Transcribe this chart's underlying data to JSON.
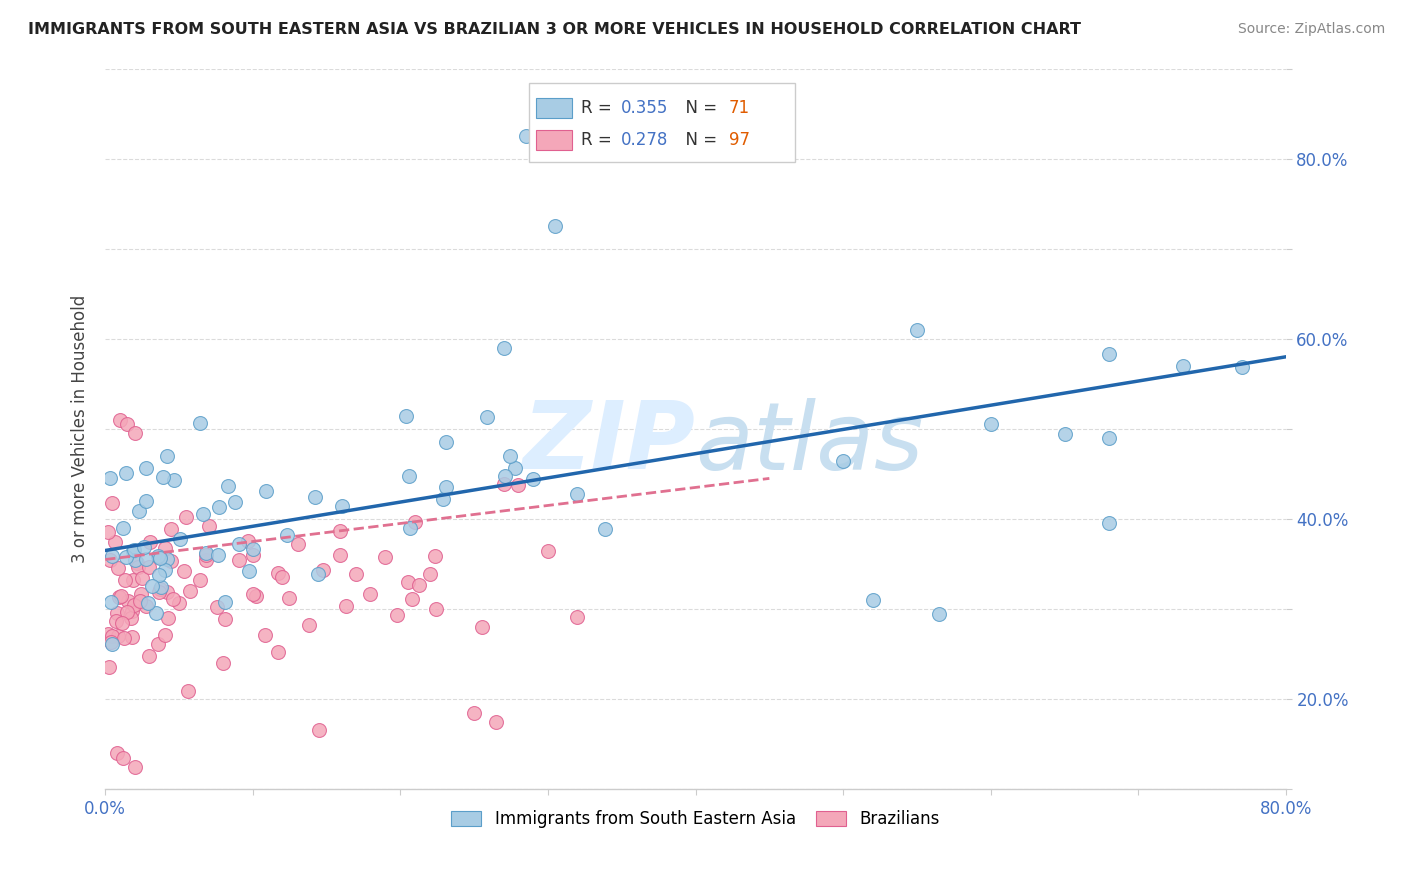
{
  "title": "IMMIGRANTS FROM SOUTH EASTERN ASIA VS BRAZILIAN 3 OR MORE VEHICLES IN HOUSEHOLD CORRELATION CHART",
  "source": "Source: ZipAtlas.com",
  "ylabel": "3 or more Vehicles in Household",
  "xlim": [
    0.0,
    0.8
  ],
  "ylim": [
    0.0,
    0.8
  ],
  "xticks": [
    0.0,
    0.1,
    0.2,
    0.3,
    0.4,
    0.5,
    0.6,
    0.7,
    0.8
  ],
  "yticks": [
    0.0,
    0.1,
    0.2,
    0.3,
    0.4,
    0.5,
    0.6,
    0.7,
    0.8
  ],
  "blue_R": 0.355,
  "blue_N": 71,
  "pink_R": 0.278,
  "pink_N": 97,
  "blue_color": "#a8cce4",
  "pink_color": "#f4a7b9",
  "blue_edge_color": "#5b9ec9",
  "pink_edge_color": "#e06090",
  "blue_line_color": "#2166ac",
  "pink_line_color": "#e07090",
  "watermark_color": "#ddeeff",
  "legend_label_blue": "Immigrants from South Eastern Asia",
  "legend_label_pink": "Brazilians",
  "R_color": "#4472c4",
  "N_color": "#e05c00",
  "title_color": "#222222",
  "source_color": "#888888",
  "tick_color": "#4472c4",
  "grid_color": "#cccccc",
  "ylabel_color": "#444444"
}
